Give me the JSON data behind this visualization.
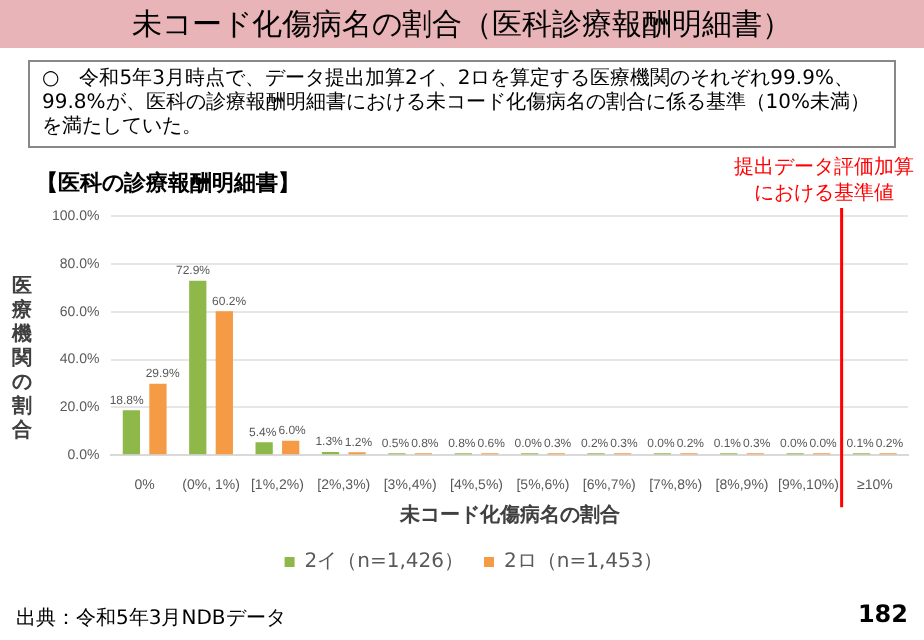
{
  "chart_data": {
    "type": "bar",
    "title": "未コード化傷病名の割合（医科診療報酬明細書）",
    "subtitle": "【医科の診療報酬明細書】",
    "xlabel": "未コード化傷病名の割合",
    "ylabel": "医療機関の割合",
    "categories": [
      "0%",
      "(0%, 1%)",
      "[1%,2%)",
      "[2%,3%)",
      "[3%,4%)",
      "[4%,5%)",
      "[5%,6%)",
      "[6%,7%)",
      "[7%,8%)",
      "[8%,9%)",
      "[9%,10%)",
      "≥10%"
    ],
    "series": [
      {
        "name": "2イ（n=1,426）",
        "color": "#8fb84a",
        "values": [
          18.8,
          72.9,
          5.4,
          1.3,
          0.5,
          0.8,
          0.0,
          0.2,
          0.0,
          0.1,
          0.0,
          0.1
        ],
        "value_labels": [
          "18.8%",
          "72.9%",
          "5.4%",
          "1.3%",
          "0.5%",
          "0.8%",
          "0.0%",
          "0.2%",
          "0.0%",
          "0.1%",
          "0.0%",
          "0.1%"
        ]
      },
      {
        "name": "2ロ（n=1,453）",
        "color": "#f59a45",
        "values": [
          29.9,
          60.2,
          6.0,
          1.2,
          0.8,
          0.6,
          0.3,
          0.3,
          0.2,
          0.3,
          0.0,
          0.2
        ],
        "value_labels": [
          "29.9%",
          "60.2%",
          "6.0%",
          "1.2%",
          "0.8%",
          "0.6%",
          "0.3%",
          "0.3%",
          "0.2%",
          "0.3%",
          "0.0%",
          "0.2%"
        ]
      }
    ],
    "ylim": [
      0,
      100
    ],
    "yticks": [
      {
        "value": 0,
        "label": "0.0%"
      },
      {
        "value": 20,
        "label": "20.0%"
      },
      {
        "value": 40,
        "label": "40.0%"
      },
      {
        "value": 60,
        "label": "60.0%"
      },
      {
        "value": 80,
        "label": "80.0%"
      },
      {
        "value": 100,
        "label": "100.0%"
      }
    ],
    "grid": "y",
    "legend": "bottom",
    "ref_lines": [
      {
        "axis": "x",
        "value": "≥10%",
        "label": "提出データ評価加算における基準値",
        "color": "#ff0000"
      }
    ],
    "annotations": [
      "○　令和5年3月時点で、データ提出加算2イ、2ロを算定する医療機関のそれぞれ99.9%、99.8%が、医科の診療報酬明細書における未コード化傷病名の割合に係る基準（10%未満）を満たしていた。",
      "出典：令和5年3月NDBデータ",
      "182"
    ]
  }
}
